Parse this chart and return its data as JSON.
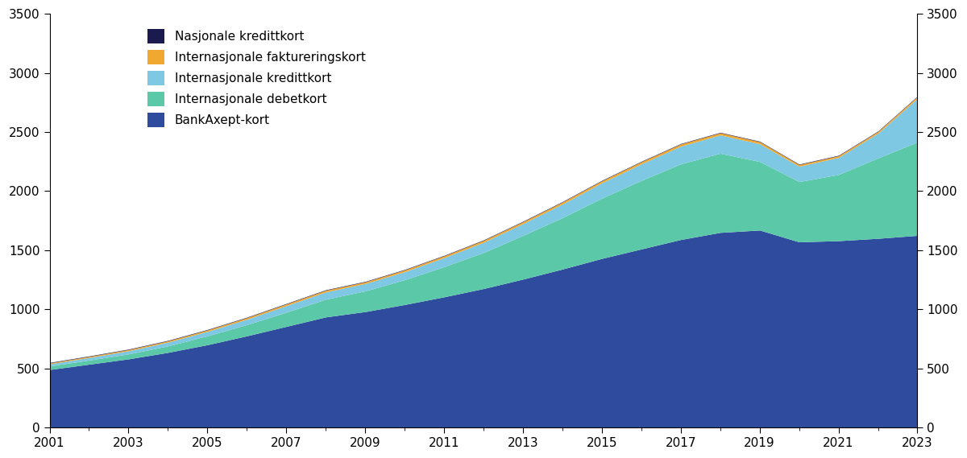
{
  "years": [
    2001,
    2002,
    2003,
    2004,
    2005,
    2006,
    2007,
    2008,
    2009,
    2010,
    2011,
    2012,
    2013,
    2014,
    2015,
    2016,
    2017,
    2018,
    2019,
    2020,
    2021,
    2022,
    2023
  ],
  "BankAxept": [
    490,
    535,
    580,
    635,
    700,
    775,
    855,
    935,
    980,
    1040,
    1105,
    1175,
    1255,
    1340,
    1430,
    1510,
    1590,
    1650,
    1670,
    1570,
    1580,
    1600,
    1625
  ],
  "Int_debetkort": [
    30,
    35,
    42,
    55,
    75,
    95,
    120,
    150,
    175,
    210,
    255,
    305,
    370,
    435,
    510,
    580,
    640,
    670,
    580,
    510,
    560,
    680,
    790
  ],
  "Int_kredittkort": [
    18,
    22,
    27,
    32,
    38,
    46,
    56,
    62,
    63,
    68,
    77,
    87,
    100,
    115,
    130,
    140,
    150,
    155,
    150,
    130,
    145,
    210,
    370
  ],
  "Int_faktureringskort": [
    8,
    9,
    10,
    11,
    12,
    13,
    14,
    14,
    14,
    15,
    15,
    16,
    16,
    17,
    17,
    18,
    18,
    18,
    18,
    14,
    14,
    14,
    15
  ],
  "Nasjonale_kredittkort": [
    4,
    4,
    4,
    4,
    4,
    4,
    4,
    4,
    4,
    4,
    4,
    4,
    4,
    4,
    4,
    4,
    4,
    4,
    4,
    4,
    4,
    4,
    4
  ],
  "colors": {
    "BankAxept": "#2E4B9E",
    "Int_debetkort": "#5BC8A8",
    "Int_kredittkort": "#7EC8E3",
    "Int_faktureringskort": "#F0A830",
    "Nasjonale_kredittkort": "#1A1A4E"
  },
  "labels": {
    "BankAxept": "BankAxept-kort",
    "Int_debetkort": "Internasjonale debetkort",
    "Int_kredittkort": "Internasjonale kredittkort",
    "Int_faktureringskort": "Internasjonale faktureringskort",
    "Nasjonale_kredittkort": "Nasjonale kredittkort"
  },
  "ylim": [
    0,
    3500
  ],
  "yticks": [
    0,
    500,
    1000,
    1500,
    2000,
    2500,
    3000,
    3500
  ],
  "background_color": "#ffffff",
  "legend_fontsize": 11,
  "tick_fontsize": 11
}
